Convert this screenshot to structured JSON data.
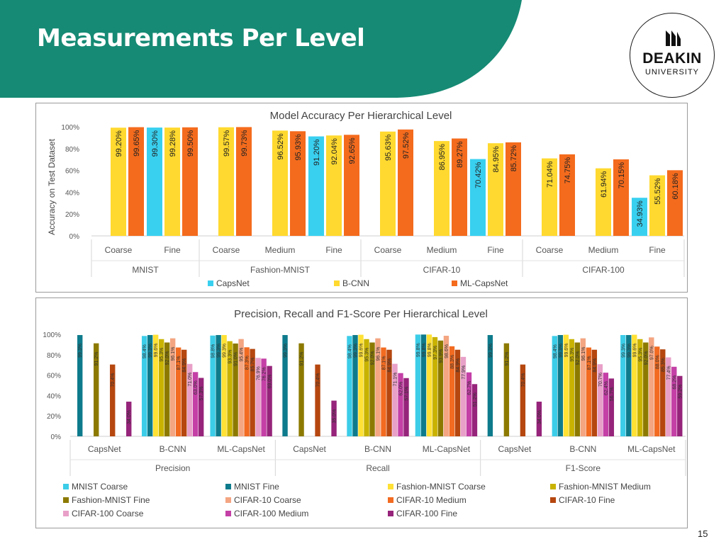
{
  "slide": {
    "title": "Measurements Per Level",
    "page_number": "15"
  },
  "logo": {
    "line1": "DEAKIN",
    "line2": "UNIVERSITY"
  },
  "colors": {
    "header_teal": "#168a74",
    "capsnet": "#39d0f0",
    "bcnn": "#ffd92f",
    "mlcapsnet": "#f46b1d"
  },
  "chart_data": [
    {
      "type": "bar",
      "title": "Model Accuracy Per Hierarchical Level",
      "xlabel": "",
      "ylabel": "Accuracy on Test Dataset",
      "ylim": [
        0,
        100
      ],
      "y_ticks": [
        "0%",
        "20%",
        "40%",
        "60%",
        "80%",
        "100%"
      ],
      "categories": [
        {
          "level": "Coarse",
          "group": "MNIST"
        },
        {
          "level": "Fine",
          "group": "MNIST"
        },
        {
          "level": "Coarse",
          "group": "Fashion-MNIST"
        },
        {
          "level": "Medium",
          "group": "Fashion-MNIST"
        },
        {
          "level": "Fine",
          "group": "Fashion-MNIST"
        },
        {
          "level": "Coarse",
          "group": "CIFAR-10"
        },
        {
          "level": "Medium",
          "group": "CIFAR-10"
        },
        {
          "level": "Fine",
          "group": "CIFAR-10"
        },
        {
          "level": "Coarse",
          "group": "CIFAR-100"
        },
        {
          "level": "Medium",
          "group": "CIFAR-100"
        },
        {
          "level": "Fine",
          "group": "CIFAR-100"
        }
      ],
      "groups": [
        {
          "name": "MNIST",
          "span": 2
        },
        {
          "name": "Fashion-MNIST",
          "span": 3
        },
        {
          "name": "CIFAR-10",
          "span": 3
        },
        {
          "name": "CIFAR-100",
          "span": 3
        }
      ],
      "series": [
        {
          "name": "CapsNet",
          "color": "#39d0f0",
          "values": [
            null,
            99.3,
            null,
            null,
            91.2,
            null,
            null,
            70.42,
            null,
            null,
            34.93
          ],
          "labels": [
            null,
            "99.30%",
            null,
            null,
            "91.20%",
            null,
            null,
            "70.42%",
            null,
            null,
            "34.93%"
          ]
        },
        {
          "name": "B-CNN",
          "color": "#ffd92f",
          "values": [
            99.2,
            99.28,
            99.57,
            96.52,
            92.04,
            95.63,
            86.95,
            84.95,
            71.04,
            61.94,
            55.52
          ],
          "labels": [
            "99.20%",
            "99.28%",
            "99.57%",
            "96.52%",
            "92.04%",
            "95.63%",
            "86.95%",
            "84.95%",
            "71.04%",
            "61.94%",
            "55.52%"
          ]
        },
        {
          "name": "ML-CapsNet",
          "color": "#f46b1d",
          "values": [
            99.65,
            99.5,
            99.73,
            95.93,
            92.65,
            97.52,
            89.27,
            85.72,
            74.75,
            70.15,
            60.18
          ],
          "labels": [
            "99.65%",
            "99.50%",
            "99.73%",
            "95.93%",
            "92.65%",
            "97.52%",
            "89.27%",
            "85.72%",
            "74.75%",
            "70.15%",
            "60.18%"
          ]
        }
      ],
      "legend": "bottom",
      "grid": false
    },
    {
      "type": "bar",
      "title": "Precision, Recall and F1-Score Per Hierarchical Level",
      "xlabel": "",
      "ylabel": "",
      "ylim": [
        0,
        100
      ],
      "y_ticks": [
        "0%",
        "20%",
        "40%",
        "60%",
        "80%",
        "100%"
      ],
      "categories": [
        {
          "model": "CapsNet",
          "metric": "Precision"
        },
        {
          "model": "B-CNN",
          "metric": "Precision"
        },
        {
          "model": "ML-CapsNet",
          "metric": "Precision"
        },
        {
          "model": "CapsNet",
          "metric": "Recall"
        },
        {
          "model": "B-CNN",
          "metric": "Recall"
        },
        {
          "model": "ML-CapsNet",
          "metric": "Recall"
        },
        {
          "model": "CapsNet",
          "metric": "F1-Score"
        },
        {
          "model": "B-CNN",
          "metric": "F1-Score"
        },
        {
          "model": "ML-CapsNet",
          "metric": "F1-Score"
        }
      ],
      "groups": [
        {
          "name": "Precision",
          "span": 3
        },
        {
          "name": "Recall",
          "span": 3
        },
        {
          "name": "F1-Score",
          "span": 3
        }
      ],
      "series": [
        {
          "name": "MNIST Coarse",
          "color": "#3ccde8",
          "values": [
            null,
            98.4,
            98.8,
            null,
            98.4,
            99.8,
            null,
            98.4,
            99.3
          ],
          "labels": [
            null,
            "98.4%",
            "98.8%",
            null,
            "98.4%",
            "99.8%",
            null,
            "98.4%",
            "99.3%"
          ]
        },
        {
          "name": "MNIST Fine",
          "color": "#0e7b8c",
          "values": [
            99.3,
            99.3,
            99.3,
            99.3,
            99.3,
            99.8,
            99.3,
            99.3,
            99.3
          ],
          "labels": [
            "99.3%",
            "99.3%",
            "99.3%",
            "99.3%",
            "99.3%",
            "99.8%",
            "99.3%",
            "99.3%",
            "99.3%"
          ]
        },
        {
          "name": "Fashion-MNIST Coarse",
          "color": "#ffe135",
          "values": [
            null,
            99.6,
            99.3,
            null,
            99.6,
            99.8,
            null,
            99.6,
            99.6
          ],
          "labels": [
            null,
            "99.6%",
            "99.3%",
            null,
            "99.6%",
            "99.8%",
            null,
            "99.6%",
            "99.6%"
          ]
        },
        {
          "name": "Fashion-MNIST Medium",
          "color": "#c9b300",
          "values": [
            null,
            95.3,
            93.3,
            null,
            95.3,
            97.3,
            null,
            95.3,
            95.3
          ],
          "labels": [
            null,
            "95.3%",
            "93.3%",
            null,
            "95.3%",
            "97.3%",
            null,
            "95.3%",
            "95.3%"
          ]
        },
        {
          "name": "Fashion-MNIST Fine",
          "color": "#8c7a00",
          "values": [
            91.2,
            92.0,
            91.0,
            91.2,
            92.0,
            93.9,
            91.2,
            92.0,
            92.0
          ],
          "labels": [
            "91.2%",
            "92.0%",
            "91.0%",
            "91.2%",
            "92.0%",
            "93.9%",
            "91.2%",
            "92.0%",
            "92.0%"
          ]
        },
        {
          "name": "CIFAR-10 Coarse",
          "color": "#f4a582",
          "values": [
            null,
            96.1,
            95.4,
            null,
            96.1,
            98.6,
            null,
            96.1,
            97.0
          ],
          "labels": [
            null,
            "96.1%",
            "95.4%",
            null,
            "96.1%",
            "98.6%",
            null,
            "96.1%",
            "97.0%"
          ]
        },
        {
          "name": "CIFAR-10 Medium",
          "color": "#f26b21",
          "values": [
            null,
            87.1,
            87.3,
            null,
            87.1,
            88.3,
            null,
            87.1,
            88.0
          ],
          "labels": [
            null,
            "87.1%",
            "87.3%",
            null,
            "87.1%",
            "88.3%",
            null,
            "87.1%",
            "88.0%"
          ]
        },
        {
          "name": "CIFAR-10 Fine",
          "color": "#b5470f",
          "values": [
            70.4,
            84.9,
            85.7,
            70.4,
            84.9,
            84.9,
            70.4,
            84.9,
            85.3
          ],
          "labels": [
            "70.4%",
            "84.9%",
            "85.7%",
            "70.4%",
            "84.9%",
            "84.9%",
            "70.4%",
            "84.9%",
            "85.3%"
          ]
        },
        {
          "name": "CIFAR-100 Coarse",
          "color": "#e8a0c8",
          "values": [
            null,
            71.0,
            76.9,
            null,
            71.1,
            77.9,
            null,
            70.7,
            77.4
          ],
          "labels": [
            null,
            "71.0%",
            "76.9%",
            null,
            "71.1%",
            "77.9%",
            null,
            "70.7%",
            "77.4%"
          ]
        },
        {
          "name": "CIFAR-100 Medium",
          "color": "#c43fa6",
          "values": [
            null,
            63.0,
            76.2,
            null,
            62.0,
            62.7,
            null,
            62.4,
            68.2
          ],
          "labels": [
            null,
            "63.0%",
            "76.2%",
            null,
            "62.0%",
            "62.7%",
            null,
            "62.4%",
            "68.2%"
          ]
        },
        {
          "name": "CIFAR-100 Fine",
          "color": "#96247a",
          "values": [
            34.0,
            57.3,
            69.0,
            35.0,
            57.1,
            51.2,
            34.0,
            56.7,
            59.2
          ],
          "labels": [
            "34.0%",
            "57.3%",
            "69.0%",
            "35.0%",
            "57.1%",
            "51.2%",
            "34.0%",
            "56.7%",
            "59.2%"
          ]
        }
      ],
      "legend": "bottom",
      "grid": false
    }
  ]
}
